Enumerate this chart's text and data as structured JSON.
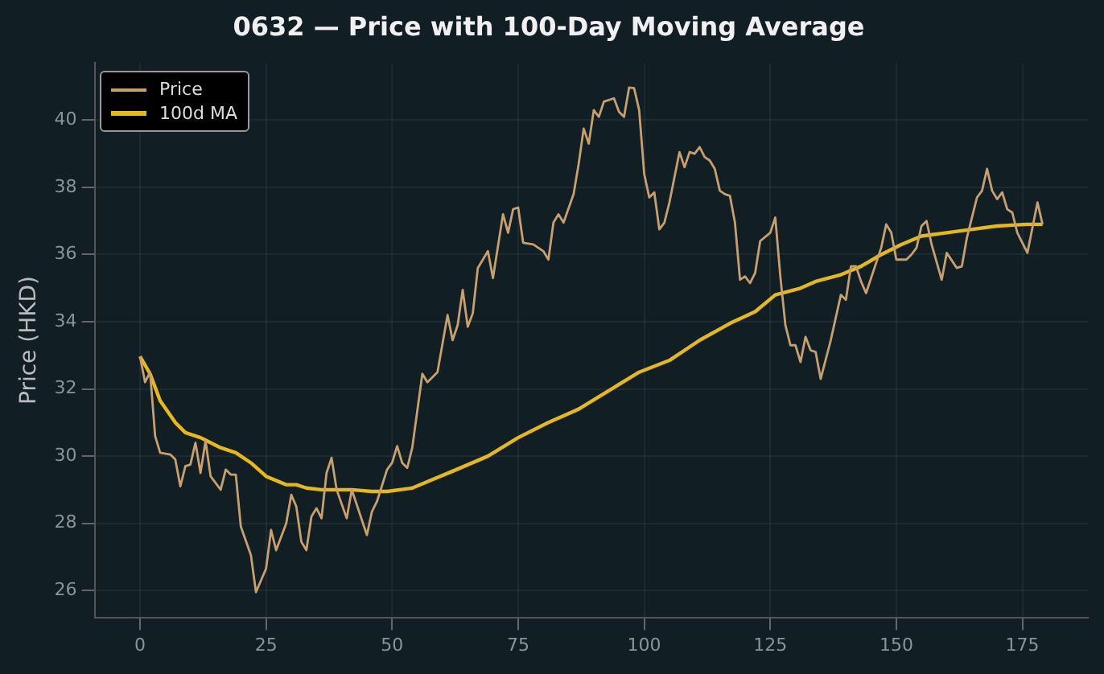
{
  "chart_data": {
    "type": "line",
    "title": "0632 — Price with 100-Day Moving Average",
    "ylabel": "Price (HKD)",
    "xlim": [
      -9,
      188
    ],
    "xticks": [
      0,
      25,
      50,
      75,
      100,
      125,
      150,
      175
    ],
    "ylim": [
      25.2,
      41.7
    ],
    "yticks": [
      26,
      28,
      30,
      32,
      34,
      36,
      38,
      40
    ],
    "grid": true,
    "legend": "top left",
    "marker": "none",
    "series": [
      {
        "name": "Price",
        "color": "#c8a070",
        "x": [
          0,
          1,
          2,
          3,
          4,
          6,
          7,
          8,
          9,
          10,
          11,
          12,
          13,
          14,
          16,
          17,
          18,
          19,
          20,
          22,
          23,
          25,
          26,
          27,
          29,
          30,
          31,
          32,
          33,
          34,
          35,
          36,
          37,
          38,
          39,
          41,
          42,
          45,
          46,
          47,
          49,
          50,
          51,
          52,
          53,
          54,
          56,
          57,
          59,
          61,
          62,
          63,
          64,
          65,
          66,
          67,
          69,
          70,
          72,
          73,
          74,
          75,
          76,
          78,
          80,
          81,
          82,
          83,
          84,
          86,
          87,
          88,
          89,
          90,
          91,
          92,
          94,
          95,
          96,
          97,
          98,
          99,
          100,
          101,
          102,
          103,
          104,
          105,
          107,
          108,
          109,
          110,
          111,
          112,
          113,
          114,
          115,
          116,
          117,
          118,
          119,
          120,
          121,
          122,
          123,
          125,
          126,
          127,
          128,
          129,
          130,
          131,
          132,
          133,
          134,
          135,
          137,
          139,
          140,
          141,
          142,
          143,
          144,
          146,
          147,
          148,
          149,
          150,
          152,
          153,
          154,
          155,
          156,
          157,
          159,
          160,
          162,
          163,
          164,
          166,
          167,
          168,
          169,
          170,
          171,
          172,
          173,
          174,
          176,
          178,
          179
        ],
        "values": [
          32.97,
          32.2,
          32.5,
          30.6,
          30.1,
          30.05,
          29.9,
          29.1,
          29.7,
          29.75,
          30.4,
          29.5,
          30.45,
          29.4,
          29.0,
          29.6,
          29.45,
          29.45,
          27.9,
          27.05,
          25.95,
          26.65,
          27.8,
          27.2,
          28.0,
          28.85,
          28.5,
          27.45,
          27.2,
          28.2,
          28.45,
          28.15,
          29.5,
          29.95,
          29.0,
          28.15,
          29.0,
          27.65,
          28.35,
          28.65,
          29.6,
          29.8,
          30.3,
          29.8,
          29.65,
          30.25,
          32.45,
          32.2,
          32.5,
          34.2,
          33.45,
          33.9,
          34.95,
          33.85,
          34.25,
          35.6,
          36.1,
          35.3,
          37.2,
          36.65,
          37.35,
          37.4,
          36.35,
          36.3,
          36.1,
          35.85,
          36.95,
          37.2,
          36.95,
          37.8,
          38.7,
          39.75,
          39.3,
          40.3,
          40.1,
          40.55,
          40.65,
          40.25,
          40.1,
          40.97,
          40.95,
          40.3,
          38.4,
          37.7,
          37.85,
          36.75,
          36.95,
          37.55,
          39.05,
          38.6,
          39.05,
          39.0,
          39.2,
          38.9,
          38.8,
          38.55,
          37.9,
          37.8,
          37.75,
          36.95,
          35.25,
          35.35,
          35.15,
          35.45,
          36.4,
          36.65,
          37.1,
          35.35,
          33.9,
          33.3,
          33.3,
          32.8,
          33.55,
          33.15,
          33.1,
          32.3,
          33.45,
          34.8,
          34.65,
          35.65,
          35.65,
          35.2,
          34.85,
          35.75,
          36.2,
          36.9,
          36.65,
          35.85,
          35.85,
          36.0,
          36.2,
          36.85,
          37.0,
          36.3,
          35.25,
          36.05,
          35.6,
          35.65,
          36.5,
          37.7,
          37.9,
          38.55,
          37.9,
          37.65,
          37.85,
          37.35,
          37.25,
          36.65,
          36.05,
          37.55,
          36.9
        ]
      },
      {
        "name": "100d MA",
        "color": "#e6b81e",
        "x": [
          0,
          2,
          4,
          7,
          9,
          12,
          16,
          19,
          22,
          25,
          29,
          31,
          33,
          36,
          42,
          46,
          49,
          54,
          58,
          62,
          69,
          75,
          81,
          87,
          93,
          99,
          105,
          111,
          117,
          122,
          126,
          131,
          134,
          139,
          143,
          147,
          151,
          155,
          160,
          165,
          170,
          176,
          179
        ],
        "values": [
          32.97,
          32.45,
          31.65,
          31.0,
          30.7,
          30.55,
          30.25,
          30.1,
          29.8,
          29.4,
          29.15,
          29.15,
          29.05,
          29.0,
          29.0,
          28.95,
          28.95,
          29.05,
          29.3,
          29.55,
          30.0,
          30.55,
          31.0,
          31.4,
          31.95,
          32.5,
          32.85,
          33.45,
          33.95,
          34.3,
          34.8,
          35.0,
          35.2,
          35.4,
          35.65,
          36.0,
          36.3,
          36.55,
          36.65,
          36.75,
          36.85,
          36.9,
          36.9
        ]
      }
    ]
  }
}
